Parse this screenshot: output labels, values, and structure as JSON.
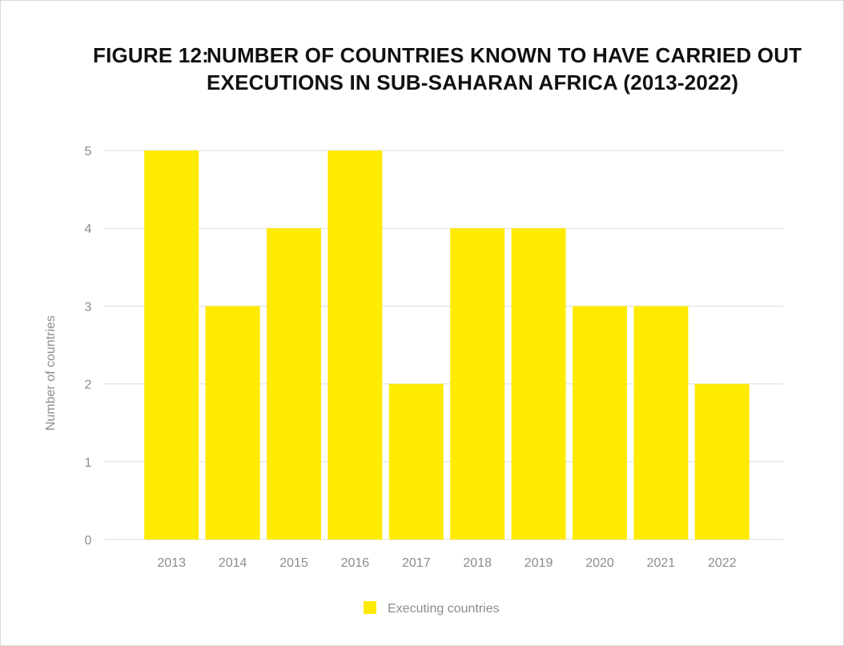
{
  "title": {
    "prefix": "FIGURE 12:",
    "line1": "NUMBER OF COUNTRIES KNOWN TO HAVE CARRIED OUT",
    "line2": "EXECUTIONS IN SUB-SAHARAN AFRICA (2013-2022)"
  },
  "chart_data": {
    "type": "bar",
    "title": "FIGURE 12: NUMBER OF COUNTRIES KNOWN TO HAVE CARRIED OUT EXECUTIONS IN SUB-SAHARAN AFRICA (2013-2022)",
    "categories": [
      "2013",
      "2014",
      "2015",
      "2016",
      "2017",
      "2018",
      "2019",
      "2020",
      "2021",
      "2022"
    ],
    "series": [
      {
        "name": "Executing countries",
        "values": [
          5,
          3,
          4,
          5,
          2,
          4,
          4,
          3,
          3,
          2
        ],
        "color": "#ffeb00"
      }
    ],
    "xlabel": "",
    "ylabel": "Number of countries",
    "ylim": [
      0,
      5
    ],
    "yticks": [
      "0",
      "1",
      "2",
      "3",
      "4",
      "5"
    ],
    "grid": true,
    "legend_position": "bottom",
    "colors": {
      "bar": "#ffeb00",
      "grid": "#dcdcdc",
      "text": "#8c8c8c"
    }
  }
}
